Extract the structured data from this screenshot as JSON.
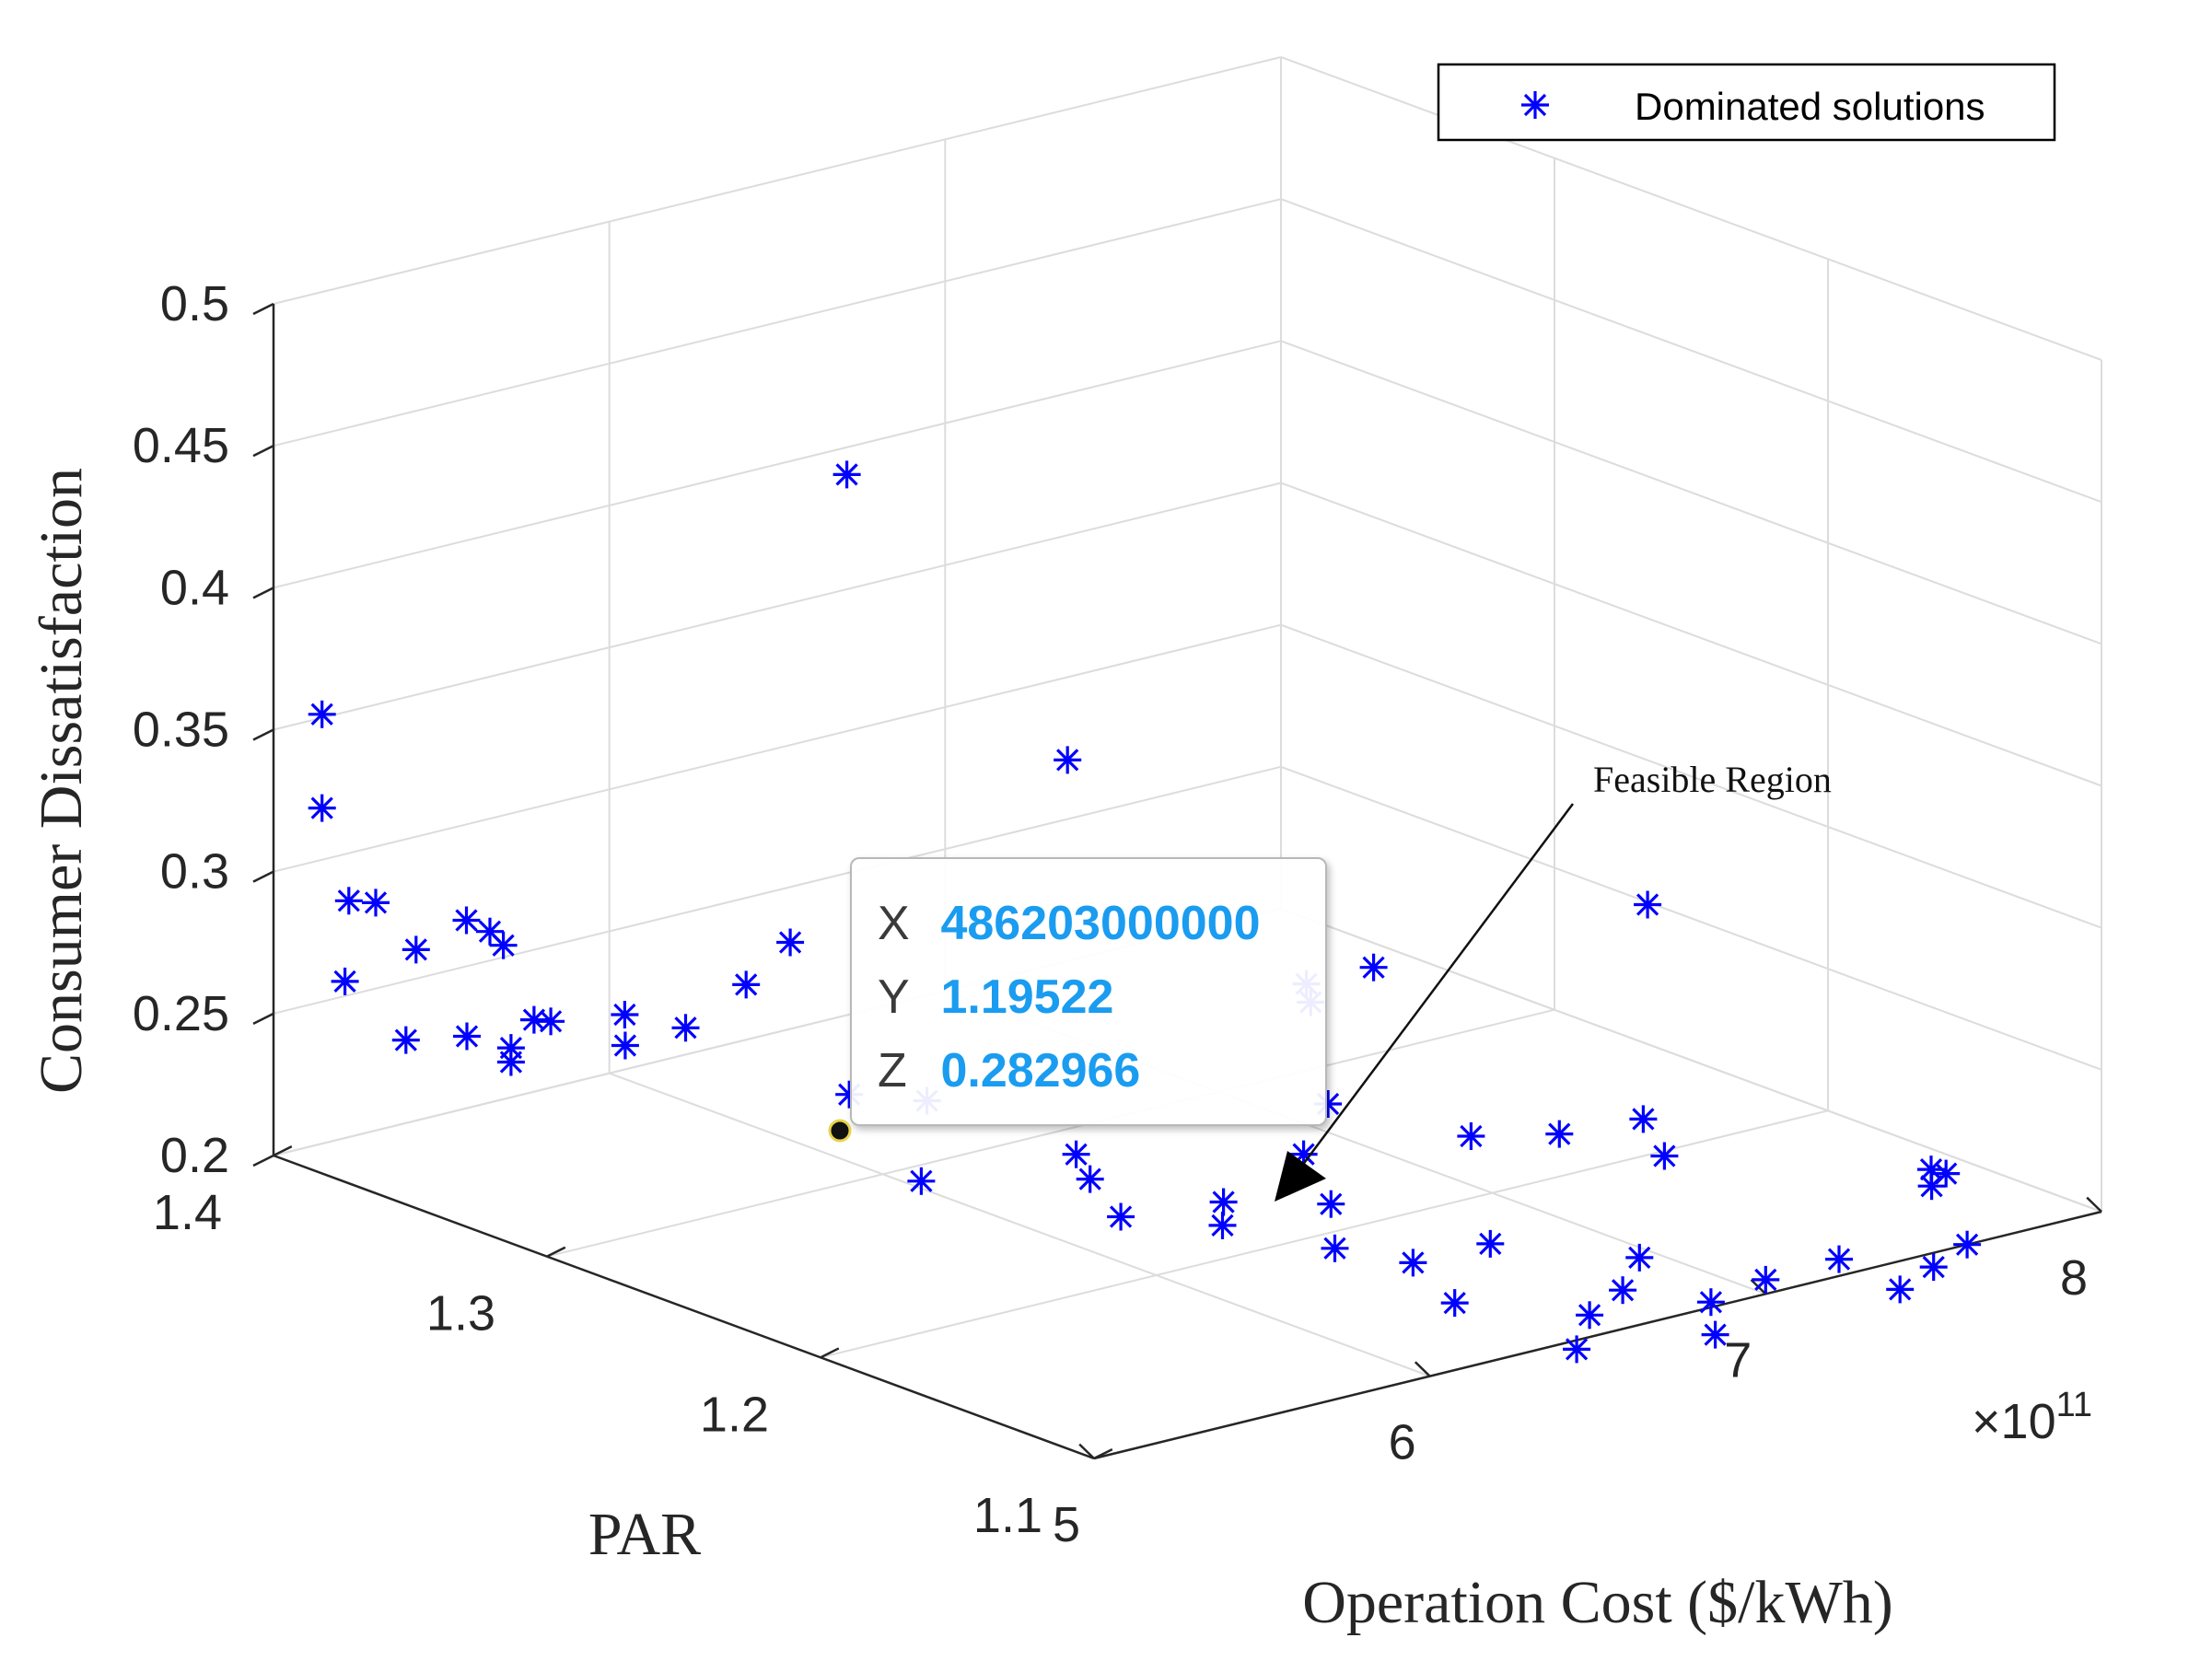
{
  "chart_data": {
    "type": "scatter3d",
    "xlabel": "Operation Cost ($/kWh)",
    "ylabel": "PAR",
    "zlabel": "Consumer Dissatisfaction",
    "x_exponent_label": "×10",
    "x_exponent_power": "11",
    "xlim": [
      5,
      8
    ],
    "ylim": [
      1.1,
      1.4
    ],
    "zlim": [
      0.2,
      0.5
    ],
    "x_ticks": [
      "5",
      "6",
      "7",
      "8"
    ],
    "y_ticks": [
      "1.1",
      "1.2",
      "1.3",
      "1.4"
    ],
    "z_ticks": [
      "0.2",
      "0.25",
      "0.3",
      "0.35",
      "0.4",
      "0.45",
      "0.5"
    ],
    "grid": true,
    "legend": {
      "position": "top-right",
      "entries": [
        "Dominated solutions"
      ]
    },
    "series": [
      {
        "name": "Dominated solutions",
        "marker": "asterisk",
        "color": "#0000ff",
        "points": [
          [
            5.12,
            1.397,
            0.353
          ],
          [
            5.12,
            1.397,
            0.32
          ],
          [
            5.2,
            1.397,
            0.285
          ],
          [
            5.28,
            1.397,
            0.282
          ],
          [
            5.05,
            1.38,
            0.267
          ],
          [
            5.4,
            1.397,
            0.262
          ],
          [
            5.55,
            1.397,
            0.268
          ],
          [
            5.62,
            1.397,
            0.262
          ],
          [
            5.66,
            1.397,
            0.256
          ],
          [
            5.15,
            1.37,
            0.247
          ],
          [
            5.25,
            1.36,
            0.249
          ],
          [
            5.3,
            1.35,
            0.247
          ],
          [
            5.3,
            1.35,
            0.242
          ],
          [
            5.45,
            1.36,
            0.249
          ],
          [
            5.5,
            1.36,
            0.247
          ],
          [
            5.72,
            1.36,
            0.243
          ],
          [
            5.64,
            1.35,
            0.238
          ],
          [
            5.82,
            1.35,
            0.239
          ],
          [
            6.0,
            1.35,
            0.249
          ],
          [
            6.05,
            1.34,
            0.266
          ],
          [
            5.9,
            1.3,
            0.231
          ],
          [
            6.05,
            1.29,
            0.228
          ],
          [
            5.87,
            1.27,
            0.212
          ],
          [
            6.21,
            1.25,
            0.21
          ],
          [
            6.22,
            1.24,
            0.2
          ],
          [
            6.25,
            1.26,
            0.214
          ],
          [
            6.36,
            1.22,
            0.2
          ],
          [
            6.2,
            1.2,
            0.22
          ],
          [
            6.52,
            1.21,
            0.224
          ],
          [
            6.52,
            1.2,
            0.21
          ],
          [
            6.45,
            1.19,
            0.2
          ],
          [
            6.52,
            1.17,
            0.2
          ],
          [
            6.75,
            1.17,
            0.2
          ],
          [
            6.95,
            1.14,
            0.2
          ],
          [
            6.9,
            1.14,
            0.19
          ],
          [
            6.72,
            1.13,
            0.19
          ],
          [
            7.0,
            1.12,
            0.19
          ],
          [
            6.85,
            1.1,
            0.19
          ],
          [
            6.4,
            1.14,
            0.2
          ],
          [
            7.1,
            1.22,
            0.21
          ],
          [
            7.35,
            1.18,
            0.21
          ],
          [
            7.2,
            1.2,
            0.215
          ],
          [
            7.45,
            1.2,
            0.213
          ],
          [
            6.6,
            1.12,
            0.185
          ],
          [
            7.9,
            1.15,
            0.2
          ],
          [
            7.4,
            1.1,
            0.19
          ],
          [
            7.6,
            1.1,
            0.2
          ],
          [
            7.82,
            1.14,
            0.2
          ],
          [
            7.3,
            1.11,
            0.2
          ],
          [
            7.5,
            1.1,
            0.195
          ],
          [
            7.7,
            1.12,
            0.215
          ],
          [
            7.0,
            1.1,
            0.205
          ],
          [
            7.6,
            1.34,
            0.2
          ],
          [
            7.75,
            1.36,
            0.195
          ],
          [
            7.95,
            1.36,
            0.195
          ],
          [
            7.0,
            1.26,
            0.21
          ],
          [
            6.55,
            1.3,
            0.33
          ],
          [
            7.3,
            1.18,
            0.3
          ],
          [
            6.3,
            1.35,
            0.42
          ]
        ]
      }
    ],
    "datatip": {
      "x": "486203000000",
      "y": "1.19522",
      "z": "0.282966"
    },
    "annotations": [
      {
        "text": "Feasible Region",
        "arrow": true
      }
    ]
  },
  "tooltip": {
    "x_label": "X",
    "x_value": "486203000000",
    "y_label": "Y",
    "y_value": "1.19522",
    "z_label": "Z",
    "z_value": "0.282966"
  },
  "legend": {
    "label": "Dominated solutions"
  },
  "annotation": {
    "text": "Feasible Region"
  }
}
